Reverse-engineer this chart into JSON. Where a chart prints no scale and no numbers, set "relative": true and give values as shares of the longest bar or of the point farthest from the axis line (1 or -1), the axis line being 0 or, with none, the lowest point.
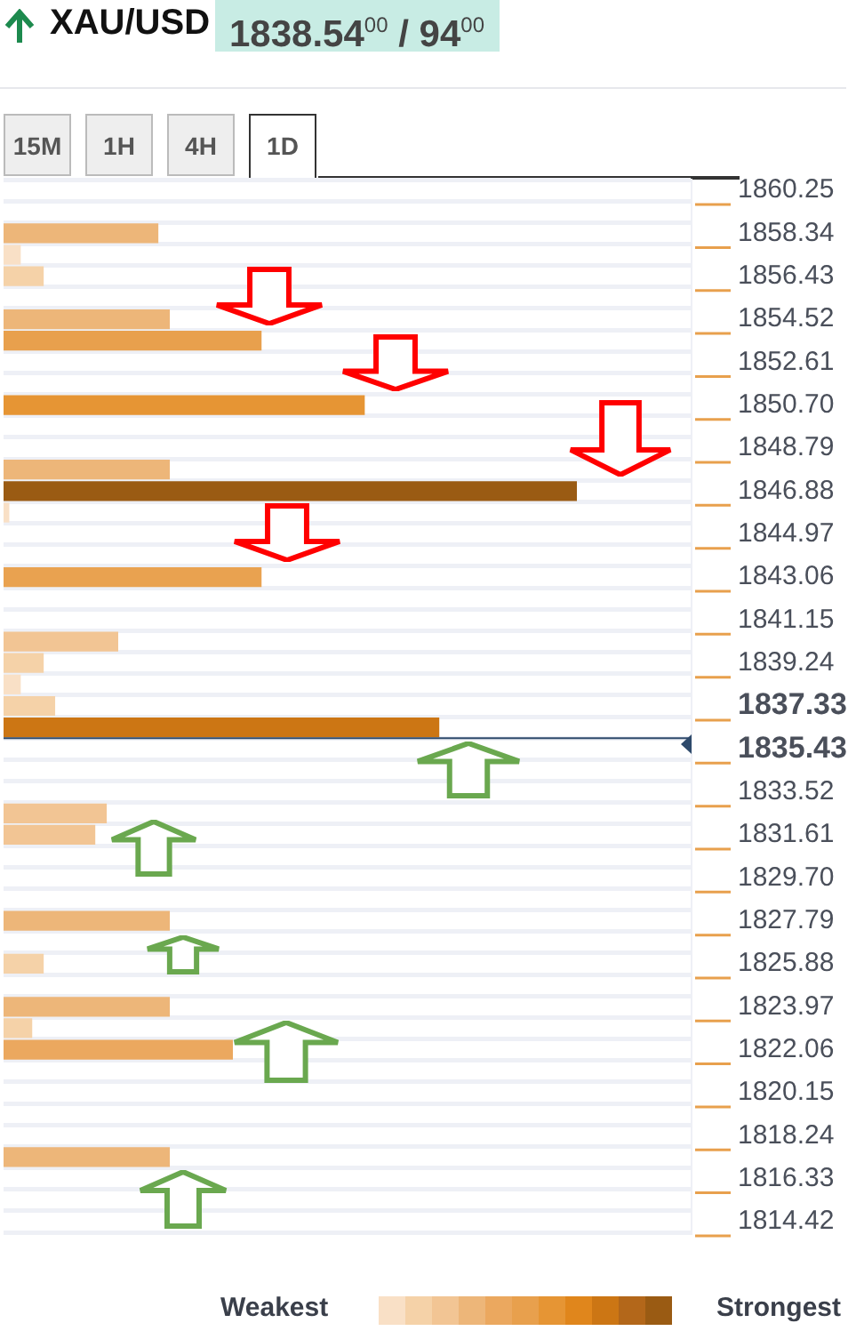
{
  "chart_data": {
    "type": "bar",
    "orientation": "horizontal",
    "relative": true,
    "title": "XAU/USD",
    "subtitle": "1838.54$^{00}$ / 94$^{00}$",
    "categories": [
      "1860.25",
      null,
      "1858.34",
      null,
      "1856.43",
      null,
      "1854.52",
      null,
      "1852.61",
      null,
      "1850.70",
      null,
      "1848.79",
      null,
      "1846.88",
      null,
      "1844.97",
      null,
      "1843.06",
      null,
      "1841.15",
      null,
      "1839.24",
      null,
      "1837.33",
      null,
      "1835.43",
      null,
      "1833.52",
      null,
      "1831.61",
      null,
      "1829.70",
      null,
      "1827.79",
      null,
      "1825.88",
      null,
      "1823.97",
      null,
      "1822.06",
      null,
      "1820.15",
      null,
      "1818.24",
      null,
      "1816.33",
      null,
      "1814.42"
    ],
    "values": [
      null,
      null,
      0.27,
      0.03,
      0.07,
      null,
      0.29,
      0.45,
      null,
      null,
      0.63,
      null,
      null,
      0.29,
      1,
      0.01,
      null,
      null,
      0.45,
      null,
      null,
      0.2,
      0.07,
      0.03,
      0.09,
      0.76,
      null,
      null,
      null,
      0.18,
      0.16,
      null,
      null,
      null,
      0.29,
      null,
      0.07,
      null,
      0.29,
      0.05,
      0.4,
      null,
      null,
      null,
      null,
      0.29,
      null,
      null,
      null
    ],
    "colors": [
      null,
      null,
      "#edb679",
      "#f9e0c6",
      "#f5d2a8",
      null,
      "#edb679",
      "#e8a04d",
      null,
      null,
      "#e69534",
      null,
      null,
      "#edb679",
      "#9a5b13",
      "#f9e0c6",
      null,
      null,
      "#e9a250",
      null,
      null,
      "#f2c594",
      "#f5d2a8",
      "#f9e0c6",
      "#f5d2a8",
      "#cc7614",
      null,
      null,
      null,
      "#f2c594",
      "#f2c594",
      null,
      null,
      null,
      "#edb679",
      null,
      "#f5d2a8",
      null,
      "#edb679",
      "#f5d2a8",
      "#eba85f",
      null,
      null,
      null,
      null,
      "#edb679",
      null,
      null,
      null
    ],
    "grid": "y",
    "ref_lines": [
      {
        "axis": "y",
        "value": "1835.43",
        "color": "#2e4a6b"
      }
    ],
    "annotations": [
      "15M",
      "1H",
      "4H",
      "1D",
      "Weakest",
      "Strongest"
    ]
  }
}
